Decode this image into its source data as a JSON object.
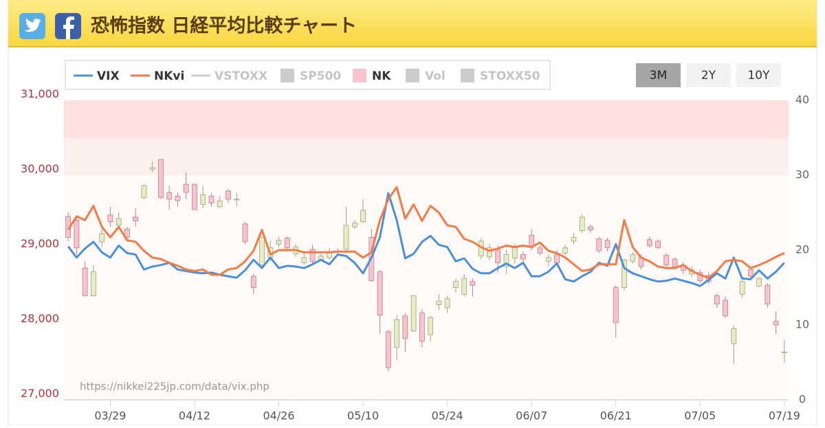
{
  "header": {
    "title": "恐怖指数 日経平均比較チャート"
  },
  "range_buttons": {
    "labels": [
      "3M",
      "2Y",
      "10Y"
    ],
    "selected": 0
  },
  "chart_data": {
    "type": "candlestick",
    "watermark": "https://nikkei225jp.com/data/vix.php",
    "categories": [
      null,
      null,
      null,
      null,
      null,
      "03/29",
      null,
      null,
      null,
      null,
      null,
      null,
      null,
      null,
      null,
      "04/12",
      null,
      null,
      null,
      null,
      null,
      null,
      null,
      null,
      null,
      "04/26",
      null,
      null,
      null,
      null,
      null,
      null,
      null,
      null,
      null,
      "05/10",
      null,
      null,
      null,
      null,
      null,
      null,
      null,
      null,
      null,
      "05/24",
      null,
      null,
      null,
      null,
      null,
      null,
      null,
      null,
      null,
      "06/07",
      null,
      null,
      null,
      null,
      null,
      null,
      null,
      null,
      null,
      "06/21",
      null,
      null,
      null,
      null,
      null,
      null,
      null,
      null,
      null,
      "07/05",
      null,
      null,
      null,
      null,
      null,
      null,
      null,
      null,
      null,
      "07/19"
    ],
    "ylim": [
      26920,
      30920
    ],
    "yticks": [
      {
        "value": 27000,
        "label": "27,000"
      },
      {
        "value": 28000,
        "label": "28,000"
      },
      {
        "value": 29000,
        "label": "29,000"
      },
      {
        "value": 30000,
        "label": "30,000"
      },
      {
        "value": 31000,
        "label": "31,000"
      }
    ],
    "y2lim": [
      0,
      40
    ],
    "y2ticks": [
      0,
      10,
      20,
      30,
      40
    ],
    "grid": false,
    "y2_bands": [
      {
        "from": 35,
        "to": 40,
        "color": "#fde1dc"
      },
      {
        "from": 30,
        "to": 35,
        "color": "#fdefeb"
      },
      {
        "from": 0,
        "to": 30,
        "color": "#fff9f7"
      }
    ],
    "series": [
      {
        "name": "VIX",
        "type": "line",
        "axis": "y2",
        "color": "#4a90d9",
        "visible": true,
        "values": [
          20.5,
          19.0,
          20.2,
          21.1,
          19.7,
          19.0,
          20.6,
          19.6,
          19.4,
          17.4,
          17.8,
          18.0,
          18.3,
          17.4,
          17.2,
          17.0,
          16.9,
          17.0,
          16.7,
          16.5,
          16.3,
          17.3,
          18.7,
          17.6,
          19.0,
          17.6,
          17.9,
          17.8,
          17.6,
          18.1,
          18.7,
          18.1,
          19.4,
          19.2,
          18.3,
          16.9,
          19.0,
          21.7,
          27.6,
          24.0,
          18.9,
          19.5,
          21.1,
          21.9,
          20.7,
          20.4,
          18.5,
          18.9,
          17.5,
          16.9,
          16.9,
          17.6,
          18.2,
          17.6,
          18.3,
          16.5,
          16.5,
          17.1,
          18.2,
          16.1,
          15.8,
          16.5,
          17.1,
          18.3,
          17.9,
          20.8,
          17.6,
          16.9,
          16.5,
          16.1,
          15.8,
          15.9,
          16.2,
          15.9,
          15.6,
          15.2,
          16.0,
          16.9,
          16.2,
          19.0,
          16.2,
          16.1,
          17.3,
          16.2,
          17.1,
          18.3
        ]
      },
      {
        "name": "NKvi",
        "type": "line",
        "axis": "y2",
        "color": "#f47b45",
        "visible": true,
        "values": [
          22.7,
          24.5,
          24.0,
          25.9,
          23.1,
          21.7,
          23.1,
          21.3,
          21.1,
          19.9,
          19.0,
          18.8,
          18.3,
          17.9,
          17.4,
          17.2,
          17.4,
          16.7,
          16.7,
          17.4,
          17.6,
          18.5,
          19.9,
          22.7,
          19.4,
          20.0,
          20.0,
          20.0,
          19.7,
          19.7,
          19.7,
          19.7,
          19.8,
          19.8,
          19.8,
          19.0,
          19.7,
          24.0,
          26.8,
          28.4,
          24.2,
          26.1,
          23.9,
          25.9,
          25.0,
          23.3,
          23.1,
          21.5,
          21.1,
          20.4,
          19.9,
          20.2,
          20.6,
          20.4,
          20.6,
          20.4,
          21.0,
          19.9,
          19.6,
          19.0,
          18.1,
          17.2,
          17.4,
          18.1,
          18.1,
          18.1,
          24.0,
          20.4,
          19.0,
          18.5,
          17.8,
          17.6,
          17.6,
          18.0,
          17.2,
          16.7,
          16.3,
          17.2,
          18.5,
          18.7,
          18.5,
          17.6,
          18.0,
          18.5,
          19.1,
          19.6
        ]
      },
      {
        "name": "VSTOXX",
        "type": "line",
        "color": "#cccccc",
        "visible": false
      },
      {
        "name": "SP500",
        "type": "candlestick",
        "color": "#cccccc",
        "visible": false
      },
      {
        "name": "NK",
        "type": "candlestick",
        "color": "#f7c3cd",
        "visible": true,
        "up_color": "#e6edc6",
        "down_color": "#f7c3cd",
        "open": [
          29370,
          29320,
          28680,
          28310,
          29030,
          29390,
          29250,
          29200,
          29360,
          29620,
          30000,
          30130,
          29690,
          29640,
          29800,
          29800,
          29530,
          29640,
          29500,
          29710,
          29600,
          29270,
          28570,
          28720,
          28820,
          29000,
          29080,
          28870,
          28750,
          28930,
          28790,
          28820,
          28900,
          28930,
          29230,
          29300,
          29090,
          28630,
          27830,
          27620,
          28040,
          27840,
          28080,
          27790,
          28190,
          28150,
          28420,
          28330,
          28500,
          28840,
          28830,
          28920,
          28700,
          28810,
          28860,
          29120,
          28950,
          28770,
          28860,
          28880,
          29040,
          29180,
          29230,
          29070,
          29050,
          28420,
          28420,
          28770,
          28820,
          29060,
          29040,
          28850,
          28800,
          28720,
          28600,
          28620,
          28580,
          28310,
          28250,
          27670,
          28330,
          28660,
          28440,
          28450,
          27970,
          27560
        ],
        "high": [
          29420,
          29370,
          28770,
          28720,
          29200,
          29500,
          29420,
          29230,
          29480,
          29800,
          30100,
          30130,
          29780,
          29690,
          29960,
          29800,
          29780,
          29690,
          29640,
          29730,
          29690,
          29300,
          28600,
          29100,
          29050,
          29100,
          29100,
          29000,
          28900,
          28990,
          28870,
          28950,
          28950,
          29500,
          29320,
          29600,
          29200,
          28650,
          27850,
          28050,
          28080,
          28320,
          28130,
          28040,
          28330,
          28310,
          28540,
          28600,
          28540,
          29080,
          29000,
          28980,
          28920,
          29000,
          28900,
          29200,
          28990,
          28860,
          28920,
          28990,
          29150,
          29400,
          29260,
          29100,
          29080,
          28450,
          28800,
          28900,
          28860,
          29100,
          29060,
          28880,
          28820,
          28760,
          28700,
          28660,
          28620,
          28340,
          28300,
          27920,
          28520,
          28700,
          28560,
          28480,
          28100,
          27720
        ],
        "low": [
          29040,
          28860,
          28300,
          28300,
          28960,
          29230,
          29200,
          29040,
          29230,
          29600,
          29960,
          29600,
          29460,
          29500,
          29600,
          29460,
          29480,
          29500,
          29480,
          29550,
          29500,
          29000,
          28330,
          28680,
          28780,
          28950,
          28900,
          28830,
          28720,
          28730,
          28770,
          28790,
          28850,
          28900,
          29200,
          29280,
          28500,
          27800,
          27300,
          27450,
          27560,
          27830,
          27620,
          27700,
          28120,
          28080,
          28350,
          28300,
          28300,
          28800,
          28780,
          28620,
          28600,
          28740,
          28760,
          28920,
          28850,
          28700,
          28730,
          28850,
          29000,
          29150,
          29150,
          28880,
          28900,
          27750,
          28380,
          28740,
          28660,
          28950,
          28940,
          28700,
          28670,
          28600,
          28560,
          28480,
          28470,
          28150,
          28020,
          27400,
          28280,
          28530,
          28420,
          28150,
          27800,
          27410
        ],
        "close": [
          29090,
          28950,
          28310,
          28630,
          29140,
          29300,
          29340,
          29090,
          29310,
          29780,
          30020,
          29620,
          29600,
          29580,
          29690,
          29460,
          29660,
          29550,
          29580,
          29600,
          29600,
          29030,
          28420,
          29090,
          28950,
          29050,
          28950,
          28960,
          28820,
          28770,
          28840,
          28900,
          28900,
          29250,
          29280,
          29450,
          28510,
          28050,
          27350,
          27990,
          27740,
          28310,
          27700,
          28020,
          28240,
          28270,
          28500,
          28540,
          28450,
          29040,
          28950,
          28750,
          28860,
          28950,
          28800,
          28970,
          28880,
          28820,
          28750,
          28950,
          29090,
          29360,
          29190,
          28910,
          28950,
          27950,
          28790,
          28860,
          28700,
          28980,
          28950,
          28720,
          28700,
          28650,
          28660,
          28510,
          28500,
          28200,
          28040,
          27870,
          28500,
          28570,
          28540,
          28200,
          27920,
          27560
        ]
      },
      {
        "name": "Vol",
        "type": "column",
        "color": "#cccccc",
        "visible": false
      },
      {
        "name": "STOXX50",
        "type": "candlestick",
        "color": "#cccccc",
        "visible": false
      }
    ]
  }
}
